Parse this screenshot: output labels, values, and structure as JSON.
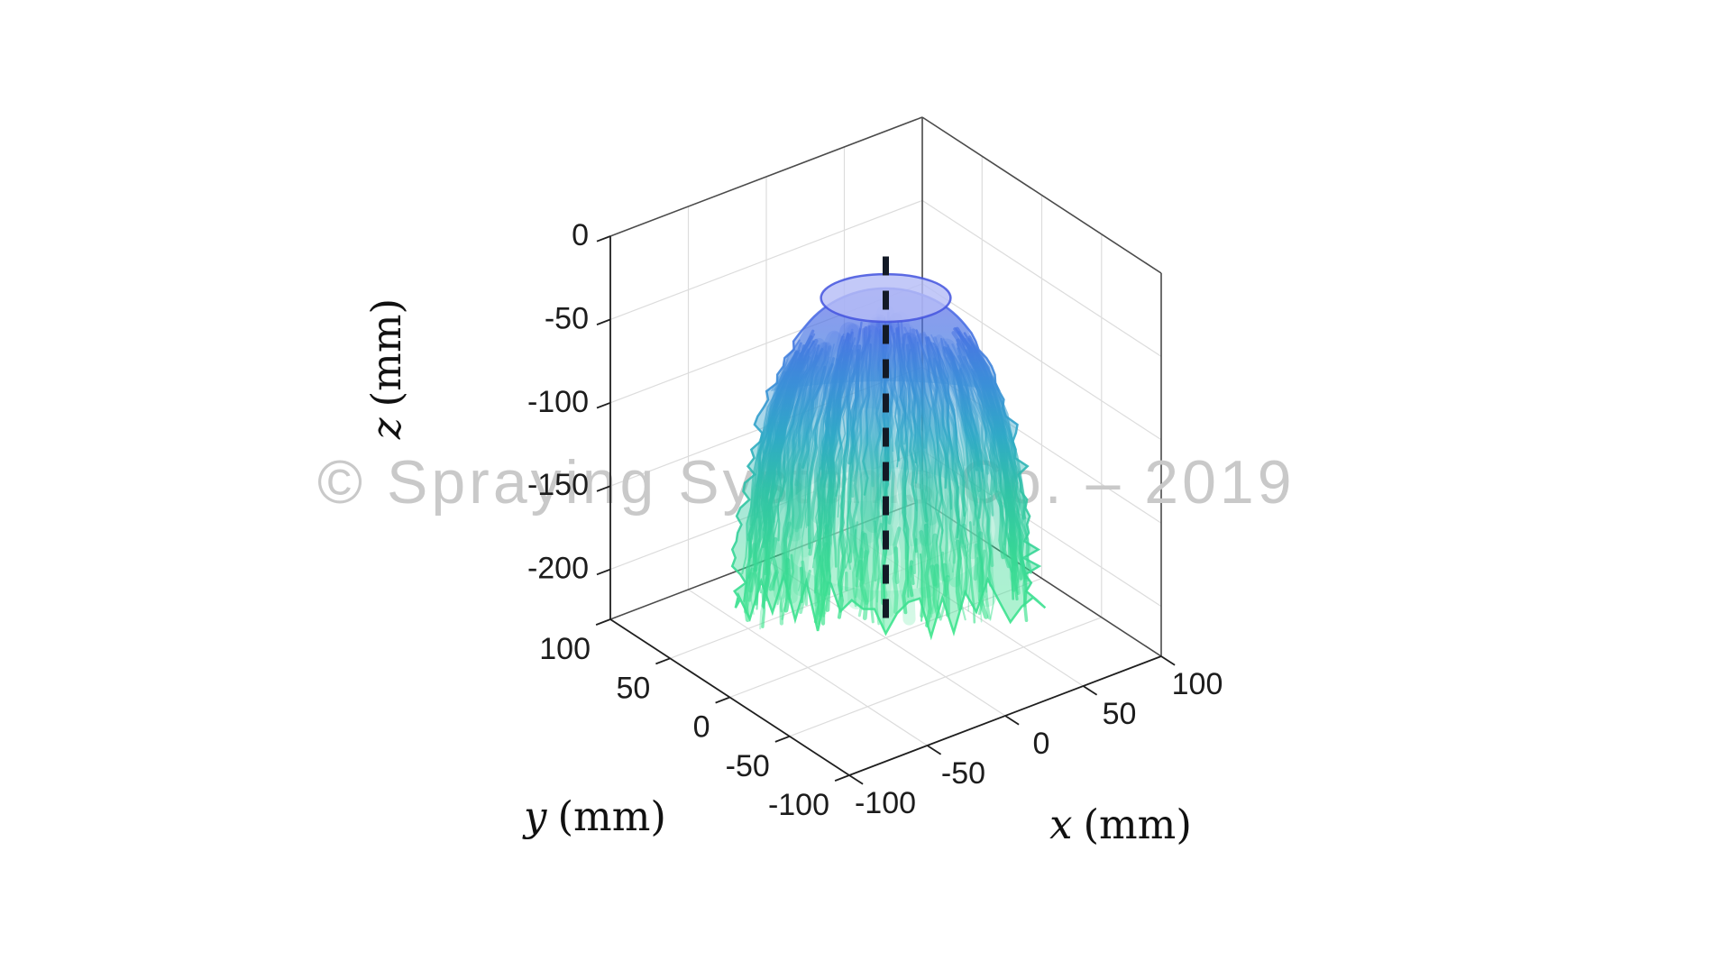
{
  "page": {
    "background": "#ffffff"
  },
  "watermark": {
    "text": "© Spraying Systems Co. – 2019",
    "color": "#c9c9c9"
  },
  "axes": {
    "x": {
      "var": "x",
      "unit": "(mm)",
      "ticks": [
        -100,
        -50,
        0,
        50,
        100
      ],
      "range": [
        -100,
        100
      ]
    },
    "y": {
      "var": "y",
      "unit": "(mm)",
      "ticks": [
        100,
        50,
        0,
        -50,
        -100
      ],
      "range": [
        -100,
        100
      ]
    },
    "z": {
      "var": "z",
      "unit": "(mm)",
      "ticks": [
        0,
        -50,
        -100,
        -150,
        -200
      ],
      "range": [
        -230,
        0
      ]
    }
  },
  "chart_data": {
    "type": "3d-surface",
    "title": "",
    "xlabel": "x (mm)",
    "ylabel": "y (mm)",
    "zlabel": "z (mm)",
    "xlim": [
      -100,
      100
    ],
    "ylim": [
      -100,
      100
    ],
    "zlim": [
      -230,
      0
    ],
    "xticks": [
      -100,
      -50,
      0,
      50,
      100
    ],
    "yticks": [
      100,
      50,
      0,
      -50,
      -100
    ],
    "zticks": [
      0,
      -50,
      -100,
      -150,
      -200
    ],
    "grid": true,
    "watermark": "© Spraying Systems Co. – 2019",
    "description": "Semi-transparent 3D reconstruction of a full-cone spray plume issuing downward from the origin; color encodes depth from blue-violet near the nozzle (z = 0) to bright green at the bottom (z ≈ -220 mm); a dashed vertical line marks the spray axis at x = 0, y = 0.",
    "spray_axis": {
      "x": 0,
      "y": 0,
      "z_start": 0,
      "z_end": -226,
      "style": "dashed",
      "color": "#131a26"
    },
    "cap": {
      "z": -26,
      "r_mm": 33
    },
    "plume_profile_mm": [
      {
        "z": -20,
        "r": 22
      },
      {
        "z": -30,
        "r": 33
      },
      {
        "z": -45,
        "r": 42
      },
      {
        "z": -60,
        "r": 50
      },
      {
        "z": -80,
        "r": 58
      },
      {
        "z": -100,
        "r": 64
      },
      {
        "z": -125,
        "r": 69
      },
      {
        "z": -150,
        "r": 72
      },
      {
        "z": -175,
        "r": 74
      },
      {
        "z": -200,
        "r": 76
      },
      {
        "z": -220,
        "r": 77
      }
    ],
    "colormap": [
      {
        "t": 0.0,
        "c": "#6366e8"
      },
      {
        "t": 0.15,
        "c": "#4a72e4"
      },
      {
        "t": 0.3,
        "c": "#3b8ed8"
      },
      {
        "t": 0.45,
        "c": "#2fa9c6"
      },
      {
        "t": 0.6,
        "c": "#30c2a6"
      },
      {
        "t": 0.78,
        "c": "#37d795"
      },
      {
        "t": 1.0,
        "c": "#3fe68d"
      }
    ],
    "grid_color": "#dcdcdc",
    "box_edge_color": "#4b4b4b",
    "axis_line_color": "#1f1f1f"
  }
}
